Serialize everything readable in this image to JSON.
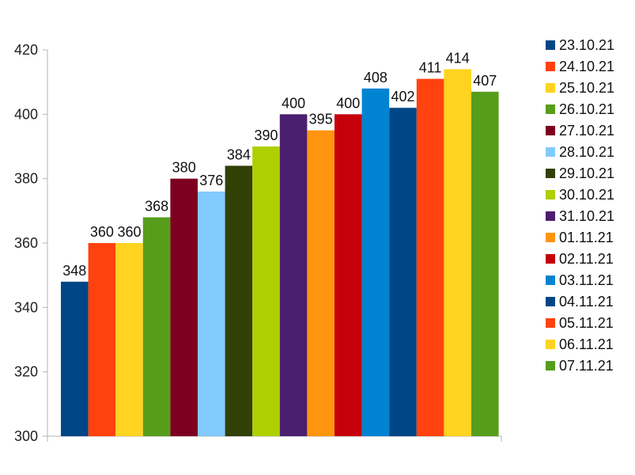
{
  "chart_data": {
    "type": "bar",
    "title": "",
    "xlabel": "",
    "ylabel": "",
    "ylim": [
      300,
      420
    ],
    "yticks": [
      300,
      320,
      340,
      360,
      380,
      400,
      420
    ],
    "grid": false,
    "legend_position": "right",
    "series": [
      {
        "name": "23.10.21",
        "value": 348,
        "color": "#004586"
      },
      {
        "name": "24.10.21",
        "value": 360,
        "color": "#ff420e"
      },
      {
        "name": "25.10.21",
        "value": 360,
        "color": "#ffd320"
      },
      {
        "name": "26.10.21",
        "value": 368,
        "color": "#579d1c"
      },
      {
        "name": "27.10.21",
        "value": 380,
        "color": "#7e0021"
      },
      {
        "name": "28.10.21",
        "value": 376,
        "color": "#83caff"
      },
      {
        "name": "29.10.21",
        "value": 384,
        "color": "#314004"
      },
      {
        "name": "30.10.21",
        "value": 390,
        "color": "#aecf00"
      },
      {
        "name": "31.10.21",
        "value": 400,
        "color": "#4b1f6f"
      },
      {
        "name": "01.11.21",
        "value": 395,
        "color": "#ff950e"
      },
      {
        "name": "02.11.21",
        "value": 400,
        "color": "#c5000b"
      },
      {
        "name": "03.11.21",
        "value": 408,
        "color": "#0084d1"
      },
      {
        "name": "04.11.21",
        "value": 402,
        "color": "#004586"
      },
      {
        "name": "05.11.21",
        "value": 411,
        "color": "#ff420e"
      },
      {
        "name": "06.11.21",
        "value": 414,
        "color": "#ffd320"
      },
      {
        "name": "07.11.21",
        "value": 407,
        "color": "#579d1c"
      }
    ]
  }
}
